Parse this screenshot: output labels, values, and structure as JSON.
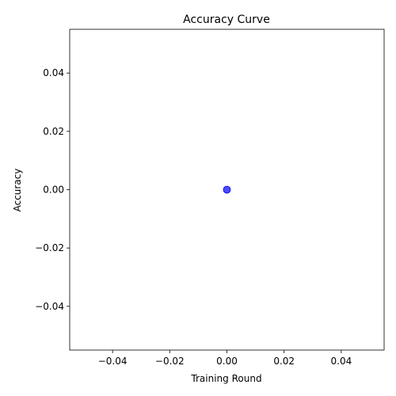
{
  "chart_data": {
    "type": "scatter",
    "title": "Accuracy Curve",
    "xlabel": "Training Round",
    "ylabel": "Accuracy",
    "xlim": [
      -0.055,
      0.055
    ],
    "ylim": [
      -0.055,
      0.055
    ],
    "x_ticks": [
      -0.04,
      -0.02,
      0.0,
      0.02,
      0.04
    ],
    "x_tick_labels": [
      "−0.04",
      "−0.02",
      "0.00",
      "0.02",
      "0.04"
    ],
    "y_ticks": [
      -0.04,
      -0.02,
      0.0,
      0.02,
      0.04
    ],
    "y_tick_labels": [
      "−0.04",
      "−0.02",
      "0.00",
      "0.02",
      "0.04"
    ],
    "grid": false,
    "series": [
      {
        "color": "#0000ff",
        "points": [
          {
            "x": 0,
            "y": 0
          }
        ]
      }
    ]
  }
}
